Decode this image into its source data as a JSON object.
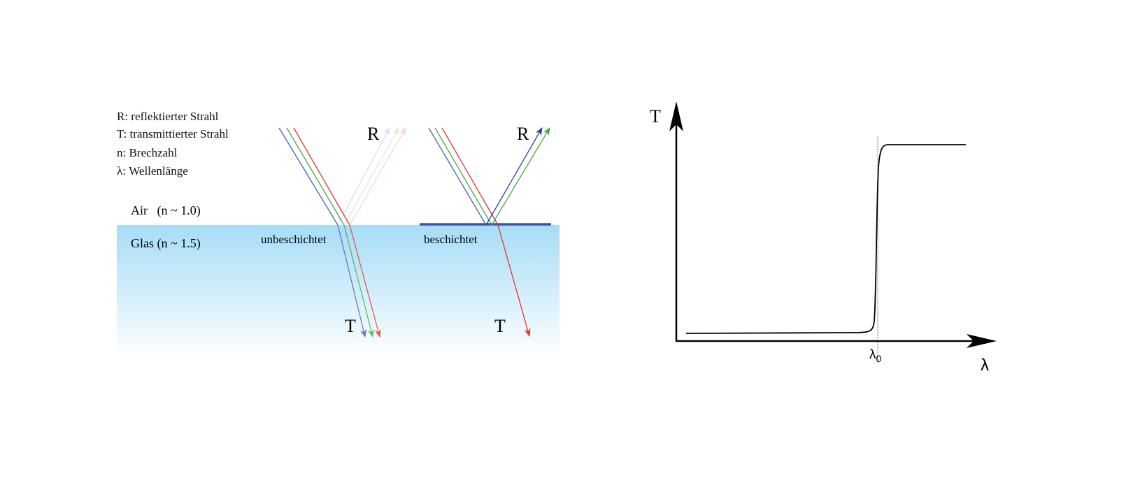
{
  "legend": [
    "R: reflektierter Strahl",
    "T: transmittierter Strahl",
    "n: Brechzahl",
    "λ: Wellenlänge"
  ],
  "media": {
    "air": "Air   (n ~ 1.0)",
    "glass": "Glas (n ~ 1.5)"
  },
  "panels": {
    "uncoated": {
      "label": "unbeschichtet",
      "reflected": "R",
      "transmitted": "T"
    },
    "coated": {
      "label": "beschichtet",
      "reflected": "R",
      "transmitted": "T"
    }
  },
  "colors": {
    "blue": "#4a5fb5",
    "green": "#3fae3f",
    "red": "#e8332a",
    "glass_top": "#a6dcf7",
    "coating": "#3f51b5"
  },
  "graph": {
    "y_label": "T",
    "x_label": "λ",
    "marker": "λ",
    "marker_sub": "0"
  }
}
